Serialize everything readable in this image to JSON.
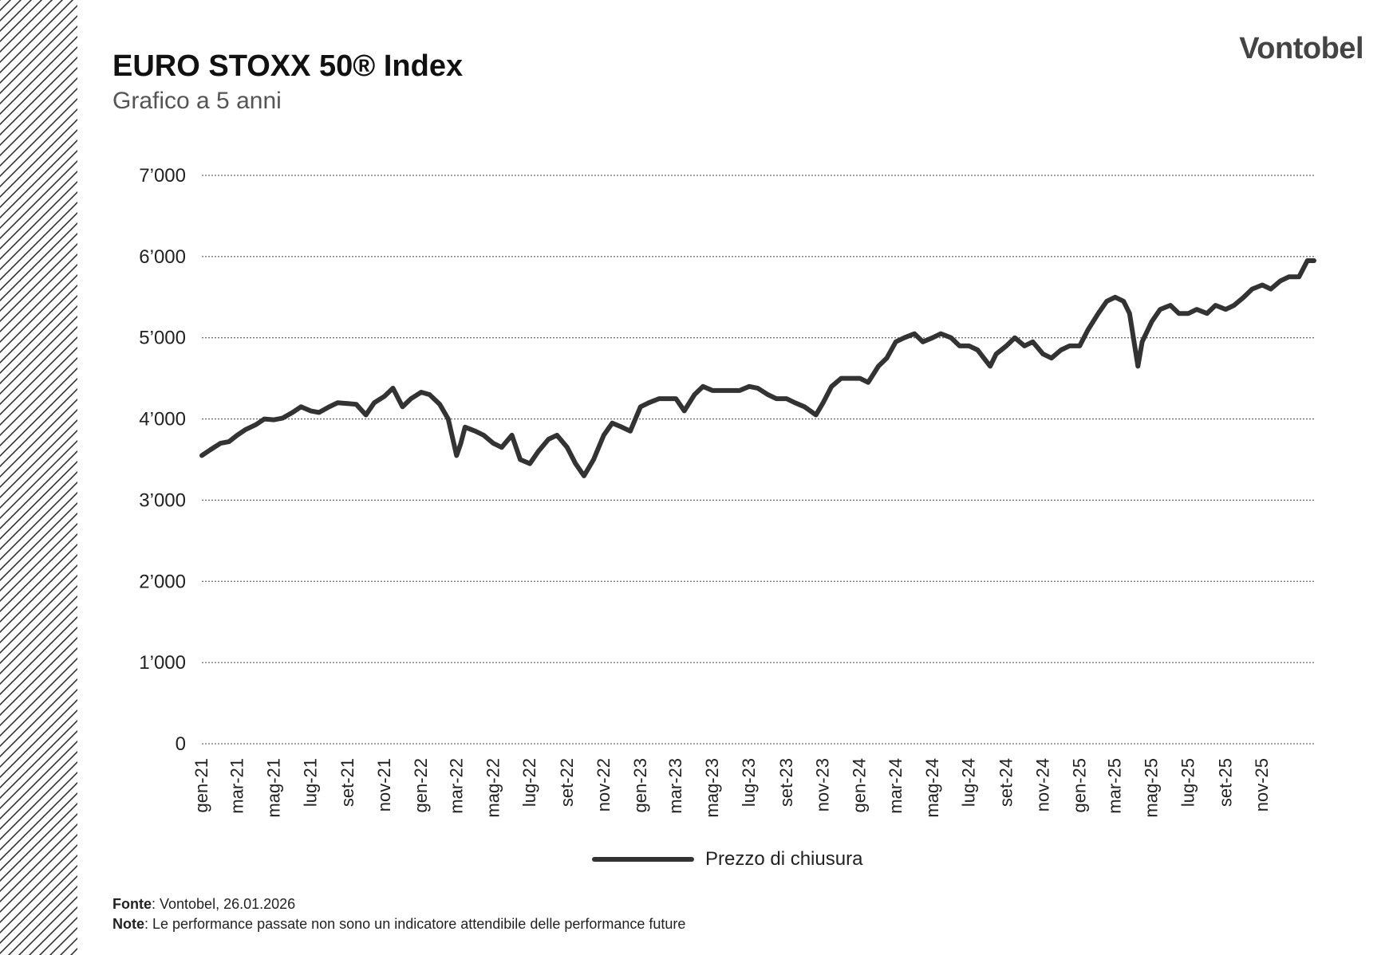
{
  "header": {
    "title": "EURO STOXX 50® Index",
    "subtitle": "Grafico a 5 anni",
    "logo_text": "Vontobel"
  },
  "footer": {
    "source_label": "Fonte",
    "source_text": ": Vontobel, 26.01.2026",
    "note_label": "Note",
    "note_text": ": Le performance passate non sono un indicatore attendibile delle performance future"
  },
  "colors": {
    "line": "#333333",
    "grid": "#444444",
    "text": "#222222"
  },
  "chart_data": {
    "type": "line",
    "title": "EURO STOXX 50® Index",
    "subtitle": "Grafico a 5 anni",
    "ylim": [
      0,
      7000
    ],
    "yticks": [
      0,
      1000,
      2000,
      3000,
      4000,
      5000,
      6000,
      7000
    ],
    "ytick_labels": [
      "0",
      "1’000",
      "2’000",
      "3’000",
      "4’000",
      "5’000",
      "6’000",
      "7’000"
    ],
    "x_tick_labels": [
      "gen-21",
      "mar-21",
      "mag-21",
      "lug-21",
      "set-21",
      "nov-21",
      "gen-22",
      "mar-22",
      "mag-22",
      "lug-22",
      "set-22",
      "nov-22",
      "gen-23",
      "mar-23",
      "mag-23",
      "lug-23",
      "set-23",
      "nov-23",
      "gen-24",
      "mar-24",
      "mag-24",
      "lug-24",
      "set-24",
      "nov-24",
      "gen-25",
      "mar-25",
      "mag-25",
      "lug-25",
      "set-25",
      "nov-25"
    ],
    "x_range": [
      "2021-01-01",
      "2026-01-26"
    ],
    "grid": true,
    "legend_position": "bottom-center",
    "series": [
      {
        "name": "Prezzo di chiusura",
        "x": [
          "2021-01-01",
          "2021-01-15",
          "2021-02-01",
          "2021-02-15",
          "2021-03-01",
          "2021-03-15",
          "2021-04-01",
          "2021-04-15",
          "2021-05-01",
          "2021-05-15",
          "2021-06-01",
          "2021-06-15",
          "2021-07-01",
          "2021-07-15",
          "2021-08-01",
          "2021-08-15",
          "2021-09-01",
          "2021-09-15",
          "2021-10-01",
          "2021-10-15",
          "2021-11-01",
          "2021-11-15",
          "2021-12-01",
          "2021-12-15",
          "2022-01-01",
          "2022-01-15",
          "2022-02-01",
          "2022-02-15",
          "2022-03-01",
          "2022-03-08",
          "2022-03-15",
          "2022-04-01",
          "2022-04-15",
          "2022-05-01",
          "2022-05-15",
          "2022-06-01",
          "2022-06-15",
          "2022-07-01",
          "2022-07-15",
          "2022-08-01",
          "2022-08-15",
          "2022-09-01",
          "2022-09-15",
          "2022-09-29",
          "2022-10-15",
          "2022-11-01",
          "2022-11-15",
          "2022-12-01",
          "2022-12-15",
          "2023-01-01",
          "2023-01-15",
          "2023-02-01",
          "2023-02-15",
          "2023-03-01",
          "2023-03-15",
          "2023-04-01",
          "2023-04-15",
          "2023-05-01",
          "2023-05-15",
          "2023-06-01",
          "2023-06-15",
          "2023-07-01",
          "2023-07-15",
          "2023-08-01",
          "2023-08-15",
          "2023-09-01",
          "2023-09-15",
          "2023-10-01",
          "2023-10-20",
          "2023-11-01",
          "2023-11-15",
          "2023-12-01",
          "2023-12-15",
          "2024-01-01",
          "2024-01-15",
          "2024-02-01",
          "2024-02-15",
          "2024-03-01",
          "2024-03-15",
          "2024-04-01",
          "2024-04-15",
          "2024-05-01",
          "2024-05-15",
          "2024-06-01",
          "2024-06-15",
          "2024-07-01",
          "2024-07-15",
          "2024-08-05",
          "2024-08-15",
          "2024-09-01",
          "2024-09-15",
          "2024-10-01",
          "2024-10-15",
          "2024-11-01",
          "2024-11-15",
          "2024-12-01",
          "2024-12-15",
          "2025-01-01",
          "2025-01-15",
          "2025-02-01",
          "2025-02-15",
          "2025-03-01",
          "2025-03-15",
          "2025-03-25",
          "2025-04-08",
          "2025-04-15",
          "2025-05-01",
          "2025-05-15",
          "2025-06-01",
          "2025-06-15",
          "2025-07-01",
          "2025-07-15",
          "2025-08-01",
          "2025-08-15",
          "2025-09-01",
          "2025-09-15",
          "2025-10-01",
          "2025-10-15",
          "2025-11-01",
          "2025-11-15",
          "2025-12-01",
          "2025-12-15",
          "2026-01-01",
          "2026-01-15",
          "2026-01-26"
        ],
        "values": [
          3550,
          3620,
          3700,
          3720,
          3800,
          3870,
          3930,
          4000,
          3990,
          4010,
          4080,
          4150,
          4100,
          4080,
          4150,
          4200,
          4190,
          4180,
          4050,
          4200,
          4280,
          4380,
          4150,
          4250,
          4330,
          4300,
          4180,
          4000,
          3550,
          3700,
          3900,
          3850,
          3800,
          3700,
          3650,
          3800,
          3500,
          3450,
          3600,
          3750,
          3800,
          3650,
          3450,
          3300,
          3500,
          3800,
          3950,
          3900,
          3850,
          4150,
          4200,
          4250,
          4250,
          4250,
          4100,
          4300,
          4400,
          4350,
          4350,
          4350,
          4350,
          4400,
          4380,
          4300,
          4250,
          4250,
          4200,
          4150,
          4050,
          4200,
          4400,
          4500,
          4500,
          4500,
          4450,
          4650,
          4750,
          4950,
          5000,
          5050,
          4950,
          5000,
          5050,
          5000,
          4900,
          4900,
          4850,
          4650,
          4800,
          4900,
          5000,
          4900,
          4950,
          4800,
          4750,
          4850,
          4900,
          4900,
          5100,
          5300,
          5450,
          5500,
          5450,
          5300,
          4650,
          4950,
          5200,
          5350,
          5400,
          5300,
          5300,
          5350,
          5300,
          5400,
          5350,
          5400,
          5500,
          5600,
          5650,
          5600,
          5700,
          5750,
          5750,
          5950,
          5950
        ]
      }
    ]
  }
}
